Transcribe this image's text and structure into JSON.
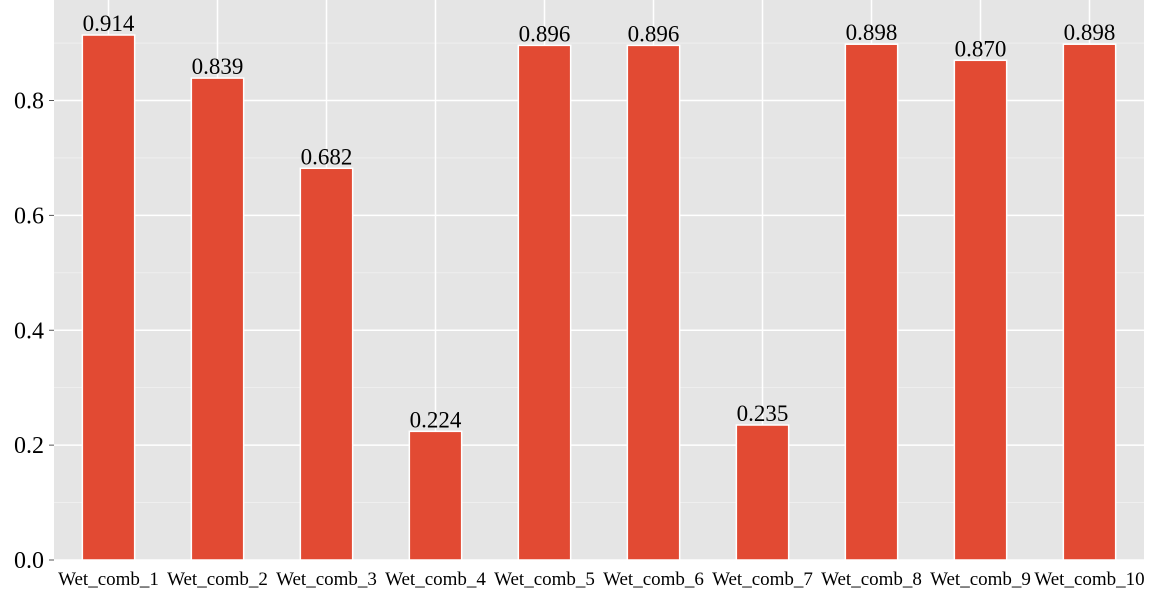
{
  "chart_data": {
    "type": "bar",
    "title": "",
    "xlabel": "",
    "ylabel": "",
    "categories": [
      "Wet_comb_1",
      "Wet_comb_2",
      "Wet_comb_3",
      "Wet_comb_4",
      "Wet_comb_5",
      "Wet_comb_6",
      "Wet_comb_7",
      "Wet_comb_8",
      "Wet_comb_9",
      "Wet_comb_10"
    ],
    "values": [
      0.914,
      0.839,
      0.682,
      0.224,
      0.896,
      0.896,
      0.235,
      0.898,
      0.87,
      0.898
    ],
    "data_labels": [
      "0.914",
      "0.839",
      "0.682",
      "0.224",
      "0.896",
      "0.896",
      "0.235",
      "0.898",
      "0.870",
      "0.898"
    ],
    "yticks": [
      0.0,
      0.2,
      0.4,
      0.6,
      0.8
    ],
    "ytick_labels": [
      "0.0",
      "0.2",
      "0.4",
      "0.6",
      "0.8"
    ],
    "ylim": [
      0,
      0.975
    ],
    "grid": true,
    "legend": "none",
    "colors": {
      "bar": "#e24a33",
      "panel_background": "#e5e5e5",
      "grid": "#ffffff",
      "bar_edge": "#ffffff"
    }
  }
}
